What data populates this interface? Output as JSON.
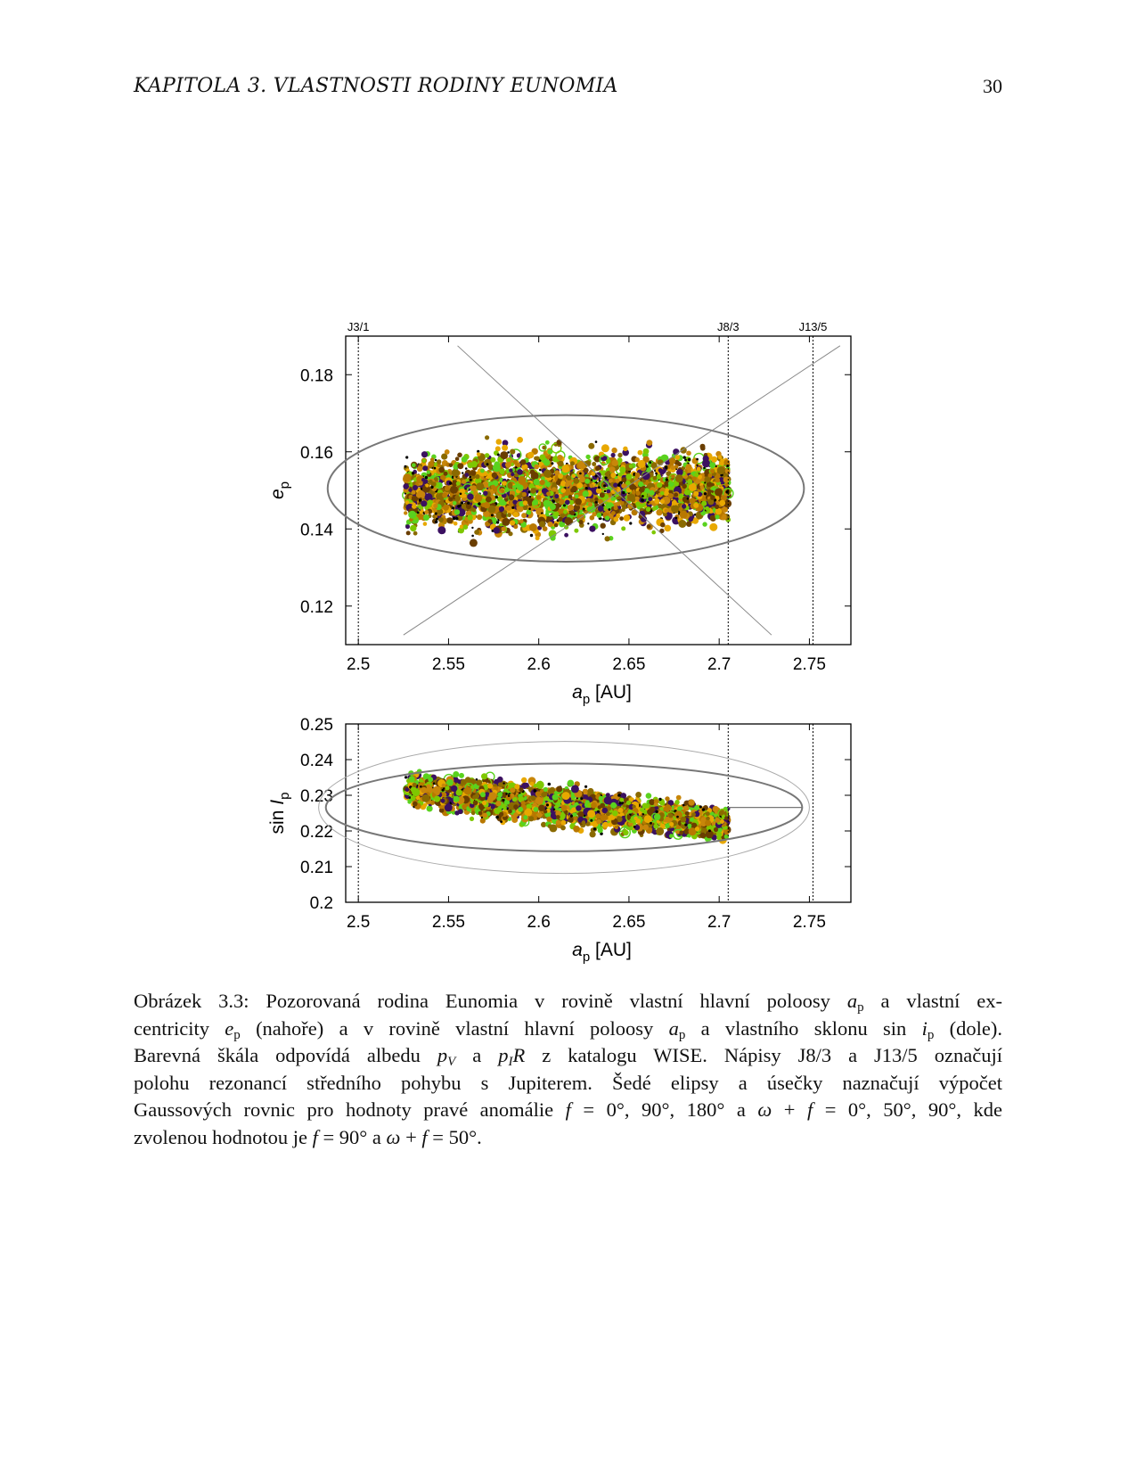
{
  "header": {
    "chapter": "KAPITOLA 3.  VLASTNOSTI RODINY EUNOMIA",
    "page_number": "30"
  },
  "chart_data": [
    {
      "type": "scatter",
      "x_tick_labels": [
        "2.5",
        "2.55",
        "2.6",
        "2.65",
        "2.7",
        "2.75"
      ],
      "y_tick_labels": [
        "0.12",
        "0.14",
        "0.16",
        "0.18"
      ],
      "xlim": [
        2.493,
        2.773
      ],
      "ylim": [
        0.11,
        0.19
      ],
      "xlabel_main": "a",
      "xlabel_sub": "p",
      "xlabel_unit": " [AU]",
      "ylabel_main": "e",
      "ylabel_sub": "p",
      "resonances": [
        {
          "label": "J3/1",
          "a": 2.5
        },
        {
          "label": "J8/3",
          "a": 2.705
        },
        {
          "label": "J13/5",
          "a": 2.752
        }
      ],
      "ellipse": {
        "center": [
          2.615,
          0.1505
        ],
        "semi_a": 0.132,
        "semi_e": 0.019
      },
      "lines": [
        {
          "x": [
            2.555,
            2.729
          ],
          "y": [
            0.1875,
            0.1125
          ]
        },
        {
          "x": [
            2.525,
            2.767
          ],
          "y": [
            0.1125,
            0.1875
          ]
        }
      ],
      "cloud": {
        "a_range": [
          2.526,
          2.705
        ],
        "e_range": [
          0.128,
          0.172
        ],
        "colors": [
          "#c8860a",
          "#e8a800",
          "#7ec800",
          "#5ad21e",
          "#b87800",
          "#6a3e00",
          "#000000",
          "#3b1060",
          "#8a6a00"
        ]
      }
    },
    {
      "type": "scatter",
      "x_tick_labels": [
        "2.5",
        "2.55",
        "2.6",
        "2.65",
        "2.7",
        "2.75"
      ],
      "y_tick_labels": [
        "0.2",
        "0.21",
        "0.22",
        "0.23",
        "0.24",
        "0.25"
      ],
      "xlim": [
        2.493,
        2.773
      ],
      "ylim": [
        0.2,
        0.25
      ],
      "xlabel_main": "a",
      "xlabel_sub": "p",
      "xlabel_unit": " [AU]",
      "ylabel_main": "sin ",
      "ylabel_var": "I",
      "ylabel_sub": "p",
      "resonances": [
        {
          "label": "J3/1",
          "a": 2.5
        },
        {
          "label": "J8/3",
          "a": 2.705
        },
        {
          "label": "J13/5",
          "a": 2.752
        }
      ],
      "ellipses": [
        {
          "center": [
            2.614,
            0.2266
          ],
          "semi_a": 0.132,
          "semi_i": 0.0123
        },
        {
          "center": [
            2.614,
            0.2266
          ],
          "semi_a": 0.136,
          "semi_i": 0.0185
        }
      ],
      "hline": {
        "x": [
          2.705,
          2.746
        ],
        "y": 0.2266
      },
      "cloud": {
        "a_range": [
          2.526,
          2.705
        ],
        "i_range": [
          0.2135,
          0.2405
        ],
        "colors": [
          "#c8860a",
          "#e8a800",
          "#7ec800",
          "#5ad21e",
          "#b87800",
          "#6a3e00",
          "#000000",
          "#3b1060",
          "#8a6a00"
        ]
      }
    }
  ],
  "caption": {
    "lines": [
      [
        "Obrázek 3.3: Pozorovaná rodina Eunomia v rovině vlastní hlavní poloosy ",
        {
          "i": "a",
          "sub": "p"
        },
        " a vlastní ex-"
      ],
      [
        "centricity ",
        {
          "i": "e",
          "sub": "p"
        },
        " (nahoře) a v rovině vlastní hlavní poloosy ",
        {
          "i": "a",
          "sub": "p"
        },
        " a vlastního sklonu sin ",
        {
          "i": "i",
          "sub": "p"
        },
        " (dole)."
      ],
      [
        "Barevná škála odpovídá albedu ",
        {
          "i": "p",
          "isub": "V"
        },
        " a ",
        {
          "i": "p",
          "isub": "I"
        },
        {
          "i": "R"
        },
        " z katalogu WISE. Nápisy J8/3 a J13/5 označují"
      ],
      [
        "polohu rezonancí středního pohybu s Jupiterem. Šedé elipsy a úsečky naznačují výpočet"
      ],
      [
        "Gaussových rovnic pro hodnoty pravé anomálie ",
        {
          "i": "f"
        },
        " = 0°, 90°, 180° a ",
        {
          "i": "ω"
        },
        " + ",
        {
          "i": "f"
        },
        " = 0°, 50°, 90°, kde"
      ],
      [
        "zvolenou hodnotou je ",
        {
          "i": "f"
        },
        " = 90° a ",
        {
          "i": "ω"
        },
        " + ",
        {
          "i": "f"
        },
        " = 50°."
      ]
    ]
  }
}
